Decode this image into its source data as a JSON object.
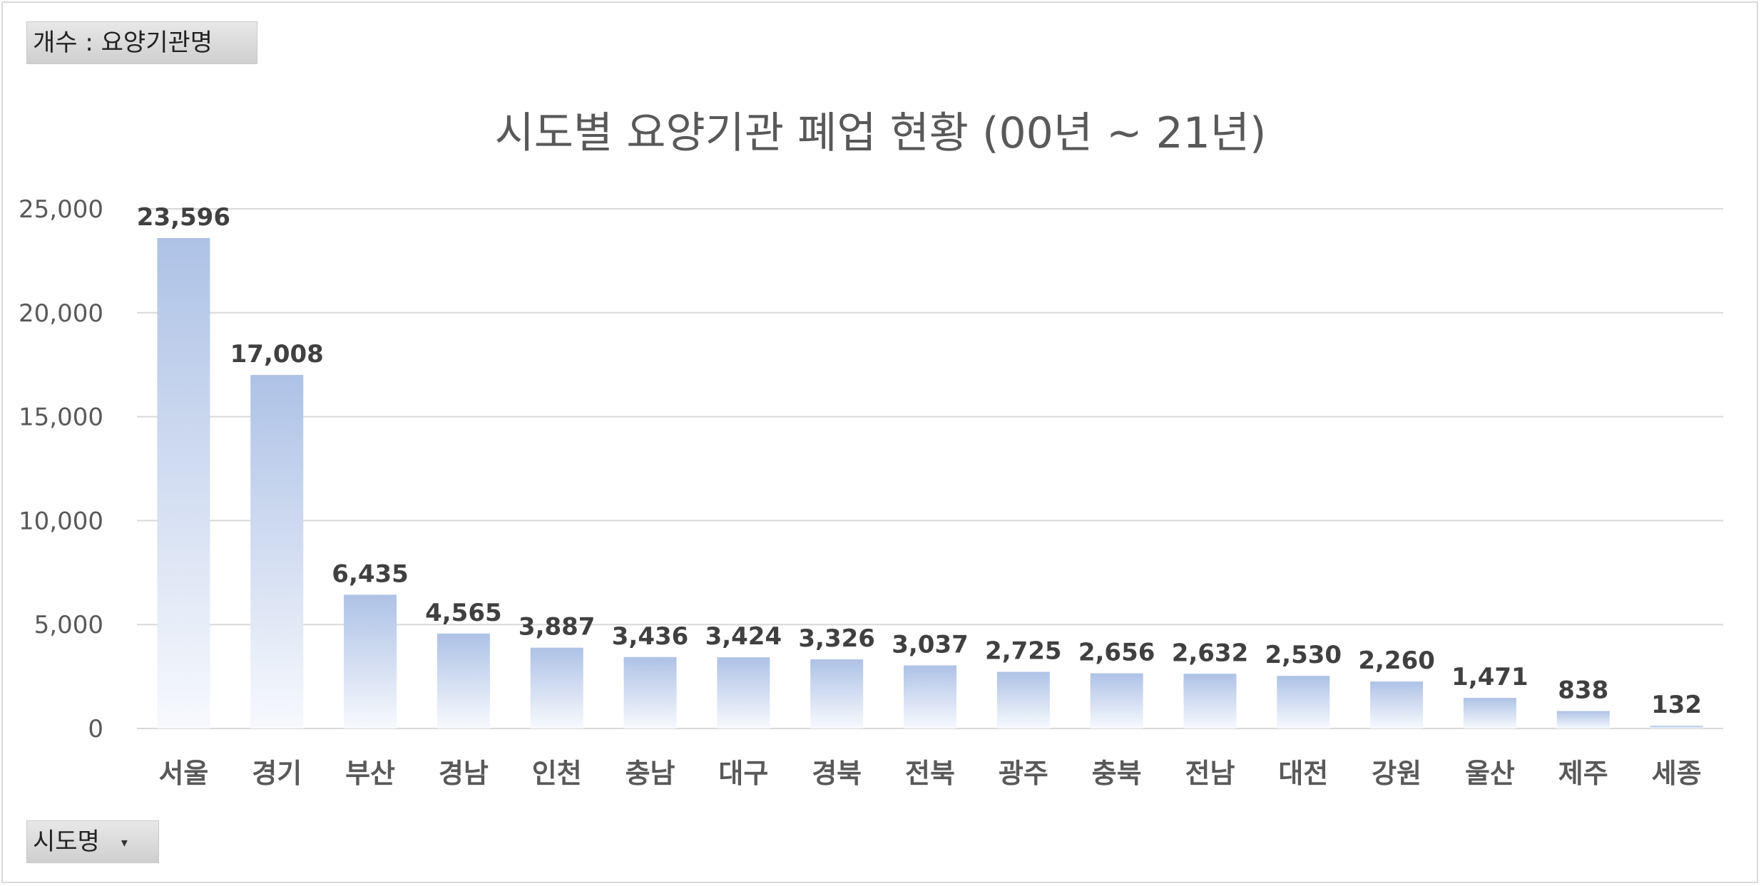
{
  "field_buttons": {
    "value_field": "개수 : 요양기관명",
    "axis_field": "시도명"
  },
  "colors": {
    "bar_top": "#aec2e6",
    "bar_bottom": "#f7f9fd",
    "grid": "#d9d9d9",
    "text": "#595959"
  },
  "chart_data": {
    "type": "bar",
    "title": "시도별 요양기관 폐업 현황 (00년 ~ 21년)",
    "xlabel": "",
    "ylabel": "",
    "ylim": [
      0,
      25000
    ],
    "yticks": [
      0,
      5000,
      10000,
      15000,
      20000,
      25000
    ],
    "ytick_labels": [
      "0",
      "5,000",
      "10,000",
      "15,000",
      "20,000",
      "25,000"
    ],
    "grid": true,
    "legend": "none",
    "categories": [
      "서울",
      "경기",
      "부산",
      "경남",
      "인천",
      "충남",
      "대구",
      "경북",
      "전북",
      "광주",
      "충북",
      "전남",
      "대전",
      "강원",
      "울산",
      "제주",
      "세종"
    ],
    "values": [
      23596,
      17008,
      6435,
      4565,
      3887,
      3436,
      3424,
      3326,
      3037,
      2725,
      2656,
      2632,
      2530,
      2260,
      1471,
      838,
      132
    ],
    "value_labels": [
      "23,596",
      "17,008",
      "6,435",
      "4,565",
      "3,887",
      "3,436",
      "3,424",
      "3,326",
      "3,037",
      "2,725",
      "2,656",
      "2,632",
      "2,530",
      "2,260",
      "1,471",
      "838",
      "132"
    ]
  }
}
